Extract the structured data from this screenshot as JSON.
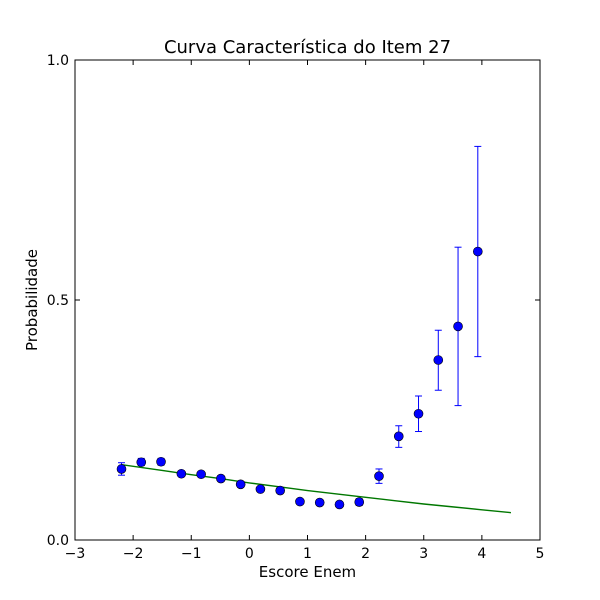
{
  "chart_data": {
    "type": "scatter",
    "title": "Curva Característica do Item 27",
    "xlabel": "Escore Enem",
    "ylabel": "Probabilidade",
    "xlim": [
      -3,
      5
    ],
    "ylim": [
      0.0,
      1.0
    ],
    "grid": false,
    "xticks": [
      -3,
      -2,
      -1,
      0,
      1,
      2,
      3,
      4,
      5
    ],
    "xtick_labels": [
      "−3",
      "−2",
      "−1",
      "0",
      "1",
      "2",
      "3",
      "4",
      "5"
    ],
    "yticks": [
      0.0,
      0.5,
      1.0
    ],
    "ytick_labels": [
      "0.0",
      "0.5",
      "1.0"
    ],
    "colors": {
      "points": "#0000ff",
      "error_bars": "#0000ff",
      "curve": "#007700"
    },
    "series": [
      {
        "type": "scatter_errorbar",
        "x": [
          -2.2,
          -1.86,
          -1.52,
          -1.17,
          -0.83,
          -0.49,
          -0.15,
          0.19,
          0.53,
          0.87,
          1.21,
          1.55,
          1.89,
          2.23,
          2.57,
          2.91,
          3.25,
          3.59,
          3.93
        ],
        "y": [
          0.148,
          0.162,
          0.163,
          0.138,
          0.137,
          0.128,
          0.116,
          0.106,
          0.103,
          0.08,
          0.078,
          0.074,
          0.079,
          0.133,
          0.216,
          0.263,
          0.375,
          0.445,
          0.601
        ],
        "yerr_low": [
          0.135,
          0.155,
          0.156,
          0.133,
          0.132,
          0.123,
          0.111,
          0.101,
          0.098,
          0.075,
          0.073,
          0.07,
          0.072,
          0.118,
          0.193,
          0.226,
          0.312,
          0.28,
          0.382
        ],
        "yerr_high": [
          0.161,
          0.17,
          0.17,
          0.143,
          0.142,
          0.133,
          0.121,
          0.111,
          0.108,
          0.085,
          0.083,
          0.078,
          0.086,
          0.148,
          0.238,
          0.3,
          0.437,
          0.61,
          0.82
        ]
      },
      {
        "type": "line",
        "x": [
          -2.2,
          -1.5,
          -1.0,
          -0.5,
          0.0,
          0.5,
          1.0,
          1.5,
          2.0,
          2.5,
          3.0,
          3.5,
          4.0,
          4.5
        ],
        "y": [
          0.157,
          0.145,
          0.136,
          0.128,
          0.119,
          0.111,
          0.103,
          0.096,
          0.089,
          0.082,
          0.075,
          0.069,
          0.063,
          0.057
        ]
      }
    ]
  }
}
